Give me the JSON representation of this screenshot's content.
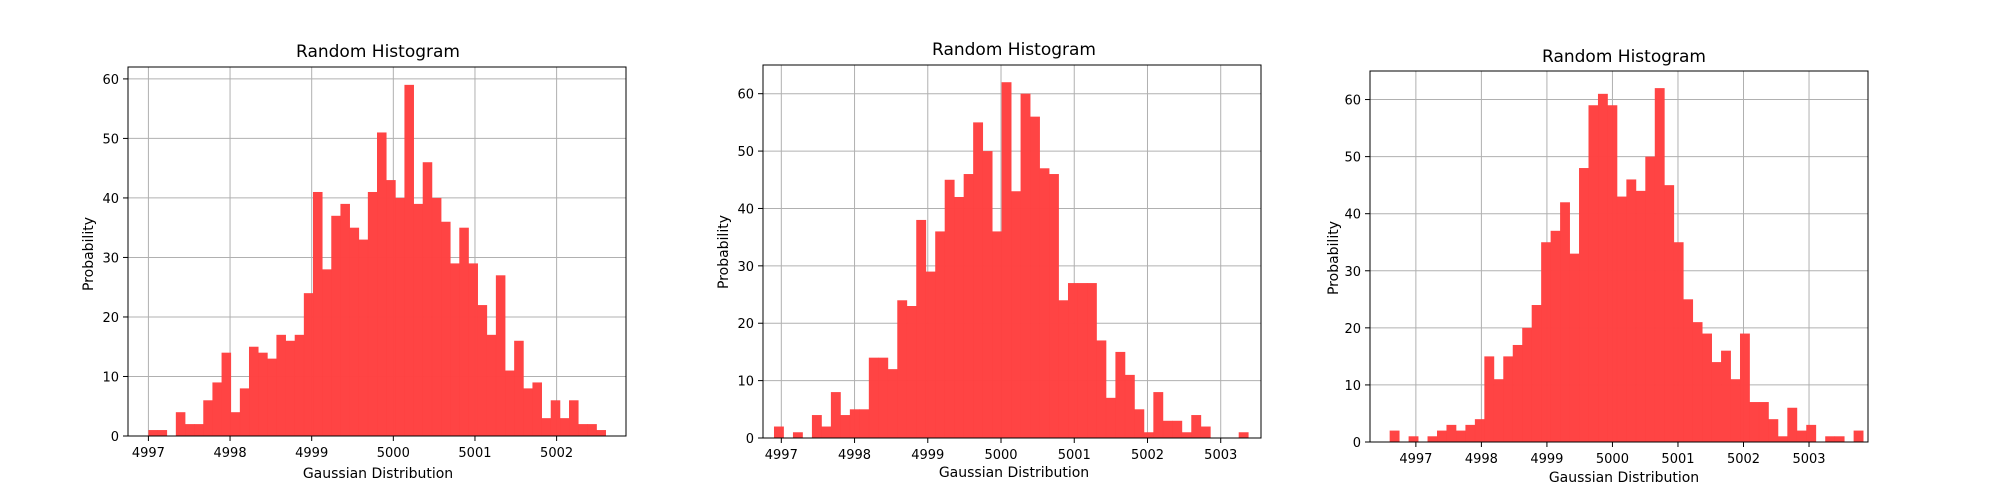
{
  "colors": {
    "bar": "#ff4040",
    "grid": "#b0b0b0",
    "axis": "#000000",
    "background": "#ffffff"
  },
  "chart_data": [
    {
      "type": "bar",
      "title": "Random Histogram",
      "xlabel": "Gaussian Distribution",
      "ylabel": "Probability",
      "grid": true,
      "xlim": [
        4996.75,
        5002.85
      ],
      "ylim": [
        0,
        62
      ],
      "xticks": [
        4997,
        4998,
        4999,
        5000,
        5001,
        5002
      ],
      "yticks": [
        0,
        10,
        20,
        30,
        40,
        50,
        60
      ],
      "bin_start": 4997.0,
      "bin_width": 0.112,
      "values": [
        1,
        1,
        0,
        4,
        2,
        2,
        6,
        9,
        14,
        4,
        8,
        15,
        14,
        13,
        17,
        16,
        17,
        24,
        41,
        28,
        37,
        39,
        35,
        33,
        41,
        51,
        43,
        40,
        59,
        39,
        46,
        40,
        36,
        29,
        35,
        29,
        22,
        17,
        27,
        11,
        16,
        8,
        9,
        3,
        6,
        3,
        6,
        2,
        2,
        1
      ]
    },
    {
      "type": "bar",
      "title": "Random Histogram",
      "xlabel": "Gaussian Distribution",
      "ylabel": "Probability",
      "grid": true,
      "xlim": [
        4996.75,
        5003.55
      ],
      "ylim": [
        0,
        65
      ],
      "xticks": [
        4997,
        4998,
        4999,
        5000,
        5001,
        5002,
        5003
      ],
      "yticks": [
        0,
        10,
        20,
        30,
        40,
        50,
        60
      ],
      "bin_start": 4996.9,
      "bin_width": 0.1295,
      "values": [
        2,
        0,
        1,
        0,
        4,
        2,
        8,
        4,
        5,
        5,
        14,
        14,
        12,
        24,
        23,
        38,
        29,
        36,
        45,
        42,
        46,
        55,
        50,
        36,
        62,
        43,
        60,
        56,
        47,
        46,
        24,
        27,
        27,
        27,
        17,
        7,
        15,
        11,
        5,
        1,
        8,
        3,
        3,
        1,
        4,
        2,
        0,
        0,
        0,
        1
      ]
    },
    {
      "type": "bar",
      "title": "Random Histogram",
      "xlabel": "Gaussian Distribution",
      "ylabel": "Probability",
      "grid": true,
      "xlim": [
        4996.3,
        5003.9
      ],
      "ylim": [
        0,
        65
      ],
      "xticks": [
        4997,
        4998,
        4999,
        5000,
        5001,
        5002,
        5003
      ],
      "yticks": [
        0,
        10,
        20,
        30,
        40,
        50,
        60
      ],
      "bin_start": 4996.6,
      "bin_width": 0.1445,
      "values": [
        2,
        0,
        1,
        0,
        1,
        2,
        3,
        2,
        3,
        4,
        15,
        11,
        15,
        17,
        20,
        24,
        35,
        37,
        42,
        33,
        48,
        59,
        61,
        59,
        43,
        46,
        44,
        50,
        62,
        45,
        35,
        25,
        21,
        19,
        14,
        16,
        11,
        19,
        7,
        7,
        4,
        1,
        6,
        2,
        3,
        0,
        1,
        1,
        0,
        2
      ]
    }
  ]
}
